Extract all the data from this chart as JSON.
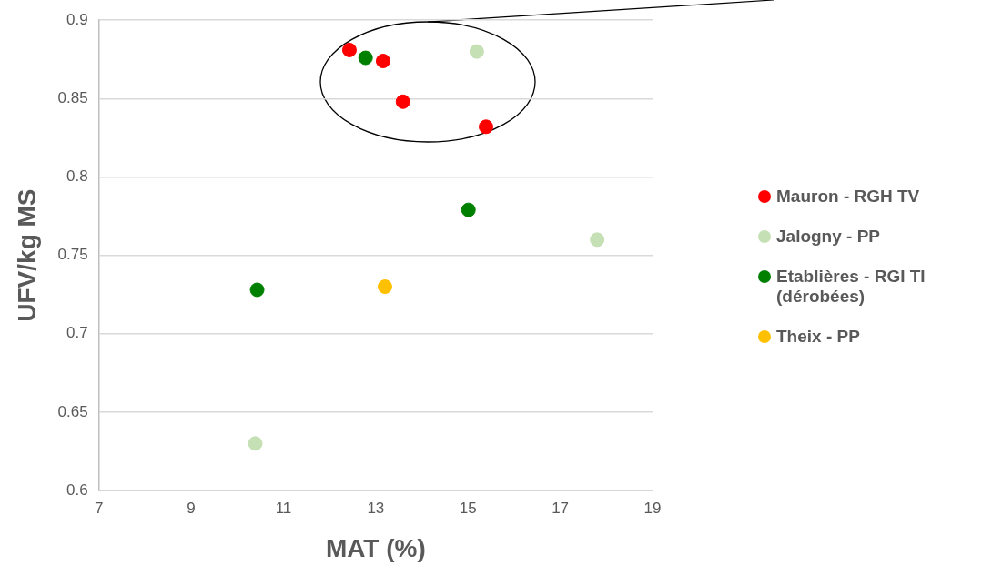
{
  "chart_data": {
    "type": "scatter",
    "xlabel": "MAT (%)",
    "ylabel": "UFV/kg MS",
    "xlim": [
      7,
      19
    ],
    "xticks": [
      7,
      9,
      11,
      13,
      15,
      17,
      19
    ],
    "ylim": [
      0.6,
      0.9
    ],
    "yticks": [
      {
        "value": 0.6,
        "label": "0.6"
      },
      0.65,
      {
        "value": 0.7,
        "label": "0.7"
      },
      0.75,
      {
        "value": 0.8,
        "label": "0.8"
      },
      0.85,
      {
        "value": 0.9,
        "label": "0.9"
      }
    ],
    "grid": "y",
    "legend": "right",
    "marker": "circle",
    "series": [
      {
        "name": "Mauron - RGH TV",
        "color": "#ff0000",
        "x": [
          12.43,
          13.16,
          13.59,
          15.39
        ],
        "values": [
          0.881,
          0.874,
          0.848,
          0.832
        ]
      },
      {
        "name": "Jalogny - PP",
        "color": "#c5e0b4",
        "x": [
          15.19,
          17.8,
          10.39
        ],
        "values": [
          0.88,
          0.76,
          0.63
        ]
      },
      {
        "name": "Etablières - RGI TI (dérobées)",
        "color": "#008000",
        "x": [
          12.78,
          15.01,
          10.43
        ],
        "values": [
          0.876,
          0.779,
          0.728
        ]
      },
      {
        "name": "Theix - PP",
        "color": "#ffc000",
        "x": [
          13.2
        ],
        "values": [
          0.73
        ]
      }
    ]
  }
}
